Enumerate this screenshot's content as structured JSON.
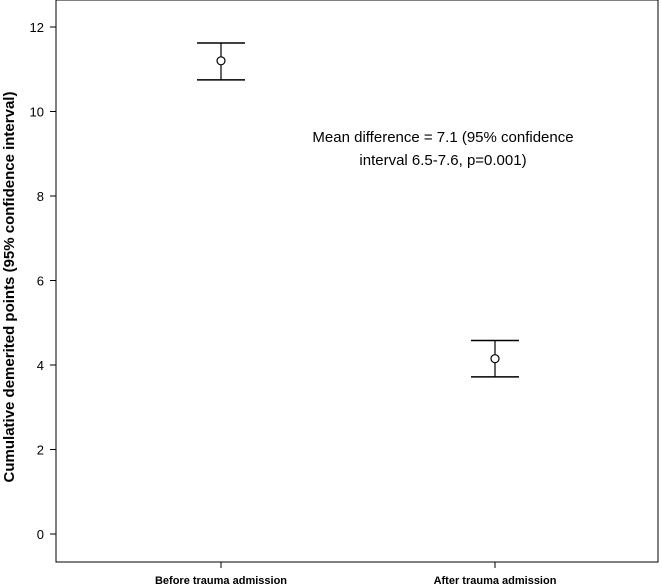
{
  "chart_data": {
    "type": "errorbar",
    "title": "",
    "xlabel": "",
    "ylabel": "Cumulative demerited points (95% confidence interval)",
    "ylim": [
      0,
      12.5
    ],
    "yticks": [
      0,
      2,
      4,
      6,
      8,
      10,
      12
    ],
    "grid": false,
    "categories": [
      "Before trauma admission",
      "After trauma admission"
    ],
    "means": [
      11.2,
      4.15
    ],
    "ci_lower": [
      10.75,
      3.72
    ],
    "ci_upper": [
      11.62,
      4.58
    ],
    "annotation": [
      "Mean difference = 7.1 (95% confidence",
      "interval 6.5-7.6, p=0.001)"
    ]
  }
}
